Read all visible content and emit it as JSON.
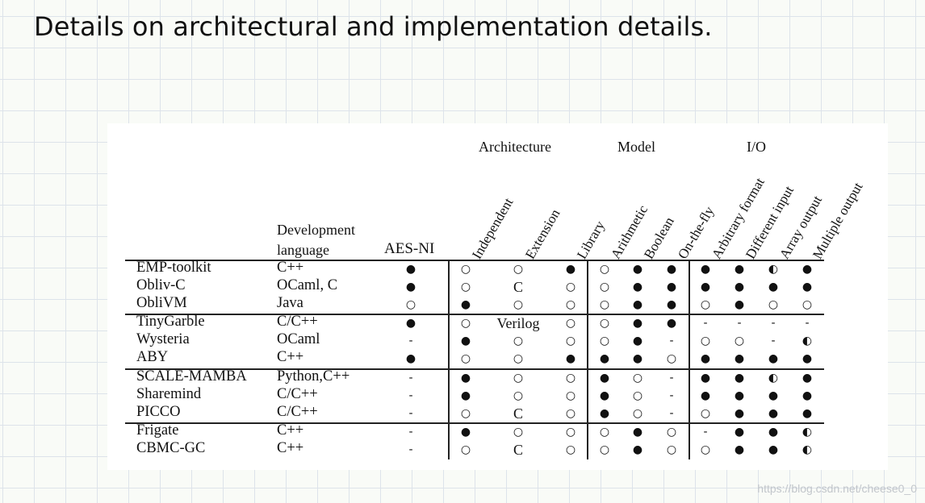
{
  "slide_title": "Details on architectural and implementation details.",
  "watermark": "https://blog.csdn.net/cheese0_0",
  "header": {
    "groups": [
      "Architecture",
      "Model",
      "I/O"
    ],
    "dev_language_line1": "Development",
    "dev_language_line2": "language",
    "aes_ni": "AES-NI",
    "rotated_columns": [
      "Independent",
      "Extension",
      "Library",
      "Arithmetic",
      "Boolean",
      "On-the-fly",
      "Arbitrary format",
      "Different input",
      "Array output",
      "Multiple output"
    ]
  },
  "symbols": {
    "full": "●",
    "empty": "○",
    "half": "◐",
    "dash": "-"
  },
  "rows": [
    {
      "name": "EMP-toolkit",
      "lang": "C++",
      "aes": "full",
      "indep": "empty",
      "ext": "empty",
      "lib": "full",
      "arith": "empty",
      "bool": "full",
      "fly": "full",
      "arb": "full",
      "diff": "full",
      "arr": "half",
      "multi": "full"
    },
    {
      "name": "Obliv-C",
      "lang": "OCaml, C",
      "aes": "full",
      "indep": "empty",
      "ext": "C",
      "lib": "empty",
      "arith": "empty",
      "bool": "full",
      "fly": "full",
      "arb": "full",
      "diff": "full",
      "arr": "full",
      "multi": "full"
    },
    {
      "name": "ObliVM",
      "lang": "Java",
      "aes": "empty",
      "indep": "full",
      "ext": "empty",
      "lib": "empty",
      "arith": "empty",
      "bool": "full",
      "fly": "full",
      "arb": "empty",
      "diff": "full",
      "arr": "empty",
      "multi": "empty"
    },
    {
      "name": "TinyGarble",
      "lang": "C/C++",
      "aes": "full",
      "indep": "empty",
      "ext": "Verilog",
      "lib": "empty",
      "arith": "empty",
      "bool": "full",
      "fly": "full",
      "arb": "dash",
      "diff": "dash",
      "arr": "dash",
      "multi": "dash"
    },
    {
      "name": "Wysteria",
      "lang": "OCaml",
      "aes": "dash",
      "indep": "full",
      "ext": "empty",
      "lib": "empty",
      "arith": "empty",
      "bool": "full",
      "fly": "dash",
      "arb": "empty",
      "diff": "empty",
      "arr": "dash",
      "multi": "half"
    },
    {
      "name": "ABY",
      "lang": "C++",
      "aes": "full",
      "indep": "empty",
      "ext": "empty",
      "lib": "full",
      "arith": "full",
      "bool": "full",
      "fly": "empty",
      "arb": "full",
      "diff": "full",
      "arr": "full",
      "multi": "full"
    },
    {
      "name": "SCALE-MAMBA",
      "lang": "Python,C++",
      "aes": "dash",
      "indep": "full",
      "ext": "empty",
      "lib": "empty",
      "arith": "full",
      "bool": "empty",
      "fly": "dash",
      "arb": "full",
      "diff": "full",
      "arr": "half",
      "multi": "full"
    },
    {
      "name": "Sharemind",
      "lang": "C/C++",
      "aes": "dash",
      "indep": "full",
      "ext": "empty",
      "lib": "empty",
      "arith": "full",
      "bool": "empty",
      "fly": "dash",
      "arb": "full",
      "diff": "full",
      "arr": "full",
      "multi": "full"
    },
    {
      "name": "PICCO",
      "lang": "C/C++",
      "aes": "dash",
      "indep": "empty",
      "ext": "C",
      "lib": "empty",
      "arith": "full",
      "bool": "empty",
      "fly": "dash",
      "arb": "empty",
      "diff": "full",
      "arr": "full",
      "multi": "full"
    },
    {
      "name": "Frigate",
      "lang": "C++",
      "aes": "dash",
      "indep": "full",
      "ext": "empty",
      "lib": "empty",
      "arith": "empty",
      "bool": "full",
      "fly": "empty",
      "arb": "dash",
      "diff": "full",
      "arr": "full",
      "multi": "half"
    },
    {
      "name": "CBMC-GC",
      "lang": "C++",
      "aes": "dash",
      "indep": "empty",
      "ext": "C",
      "lib": "empty",
      "arith": "empty",
      "bool": "full",
      "fly": "empty",
      "arb": "empty",
      "diff": "full",
      "arr": "full",
      "multi": "half"
    }
  ]
}
